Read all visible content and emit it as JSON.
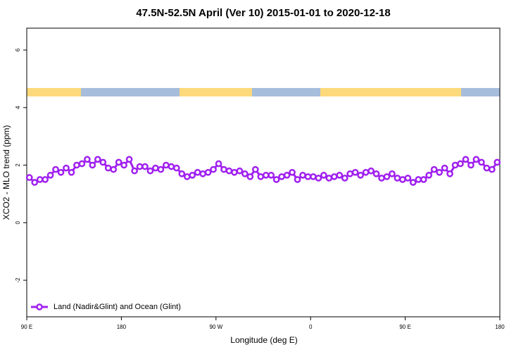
{
  "chart_data": {
    "type": "line",
    "title": "47.5N-52.5N April (Ver 10)   2015-01-01 to 2020-12-18",
    "x_label": "Longitude (deg E)",
    "y_label": "XCO2 - MLO trend (ppm)",
    "x": [
      92.5,
      97.5,
      102.5,
      107.5,
      112.5,
      117.5,
      122.5,
      127.5,
      132.5,
      137.5,
      142.5,
      147.5,
      152.5,
      157.5,
      162.5,
      167.5,
      172.5,
      177.5,
      182.5,
      187.5,
      192.5,
      197.5,
      202.5,
      207.5,
      212.5,
      217.5,
      222.5,
      227.5,
      232.5,
      237.5,
      242.5,
      247.5,
      252.5,
      257.5,
      262.5,
      267.5,
      272.5,
      277.5,
      282.5,
      287.5,
      292.5,
      297.5,
      302.5,
      307.5,
      312.5,
      317.5,
      322.5,
      327.5,
      332.5,
      337.5,
      342.5,
      347.5,
      352.5,
      357.5,
      362.5,
      367.5,
      372.5,
      377.5,
      382.5,
      387.5,
      392.5,
      397.5,
      402.5,
      407.5,
      412.5,
      417.5,
      422.5,
      427.5,
      432.5,
      437.5,
      442.5,
      447.5,
      452.5,
      457.5,
      462.5,
      467.5,
      472.5,
      477.5,
      482.5,
      487.5,
      492.5,
      497.5,
      502.5,
      507.5,
      512.5,
      517.5,
      522.5,
      527.5,
      532.5,
      537.5
    ],
    "series": [
      {
        "name": "Land (Nadir&Glint) and Ocean (Glint)",
        "color": "#a020f0",
        "values": [
          1.57,
          1.4,
          1.5,
          1.5,
          1.65,
          1.85,
          1.75,
          1.9,
          1.75,
          2.0,
          2.05,
          2.2,
          2.0,
          2.2,
          2.1,
          1.9,
          1.85,
          2.1,
          2.0,
          2.2,
          1.8,
          1.95,
          1.95,
          1.8,
          1.9,
          1.85,
          2.0,
          1.95,
          1.9,
          1.7,
          1.6,
          1.65,
          1.75,
          1.7,
          1.75,
          1.85,
          2.05,
          1.85,
          1.8,
          1.75,
          1.8,
          1.7,
          1.6,
          1.85,
          1.6,
          1.65,
          1.65,
          1.5,
          1.6,
          1.65,
          1.75,
          1.5,
          1.65,
          1.6,
          1.6,
          1.55,
          1.65,
          1.55,
          1.6,
          1.65,
          1.55,
          1.7,
          1.75,
          1.65,
          1.75,
          1.8,
          1.7,
          1.55,
          1.6,
          1.7,
          1.55,
          1.5,
          1.55,
          1.4,
          1.5,
          1.5,
          1.65,
          1.85,
          1.75,
          1.9,
          1.7,
          2.0,
          2.05,
          2.2,
          2.0,
          2.2,
          2.1,
          1.9,
          1.85,
          2.1
        ]
      }
    ],
    "xlim": [
      90,
      540
    ],
    "xticks": [
      {
        "value": 90,
        "label": "90 E"
      },
      180,
      {
        "value": 270,
        "label": "90 W"
      },
      {
        "value": 360,
        "label": "0"
      },
      {
        "value": 450,
        "label": "90 E"
      },
      {
        "value": 540,
        "label": "180"
      }
    ],
    "ylim": [
      -3.27,
      6.76
    ],
    "yticks": [
      -2,
      0,
      2,
      4,
      6
    ],
    "legend": "bottom-left"
  }
}
